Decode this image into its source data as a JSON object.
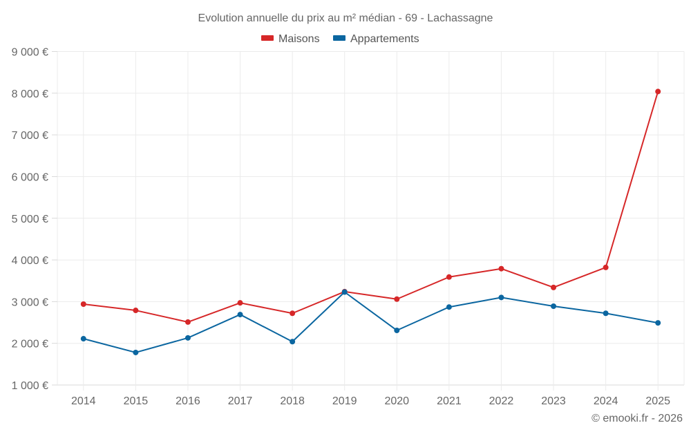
{
  "chart_data": {
    "type": "line",
    "title": "Evolution annuelle du prix au m² médian - 69 - Lachassagne",
    "xlabel": "",
    "ylabel": "",
    "categories": [
      "2014",
      "2015",
      "2016",
      "2017",
      "2018",
      "2019",
      "2020",
      "2021",
      "2022",
      "2023",
      "2024",
      "2025"
    ],
    "series": [
      {
        "name": "Maisons",
        "color": "#d62728",
        "values": [
          2940,
          2790,
          2510,
          2970,
          2720,
          3240,
          3060,
          3590,
          3790,
          3340,
          3820,
          8040
        ]
      },
      {
        "name": "Appartements",
        "color": "#0b66a0",
        "values": [
          2110,
          1780,
          2130,
          2690,
          2040,
          3230,
          2310,
          2870,
          3100,
          2890,
          2720,
          2490
        ]
      }
    ],
    "ylim": [
      1000,
      9000
    ],
    "yticks": [
      1000,
      2000,
      3000,
      4000,
      5000,
      6000,
      7000,
      8000,
      9000
    ],
    "ytick_labels": [
      "1 000 €",
      "2 000 €",
      "3 000 €",
      "4 000 €",
      "5 000 €",
      "6 000 €",
      "7 000 €",
      "8 000 €",
      "9 000 €"
    ],
    "grid": true,
    "legend_position": "top-center",
    "credit": "© emooki.fr - 2026"
  }
}
